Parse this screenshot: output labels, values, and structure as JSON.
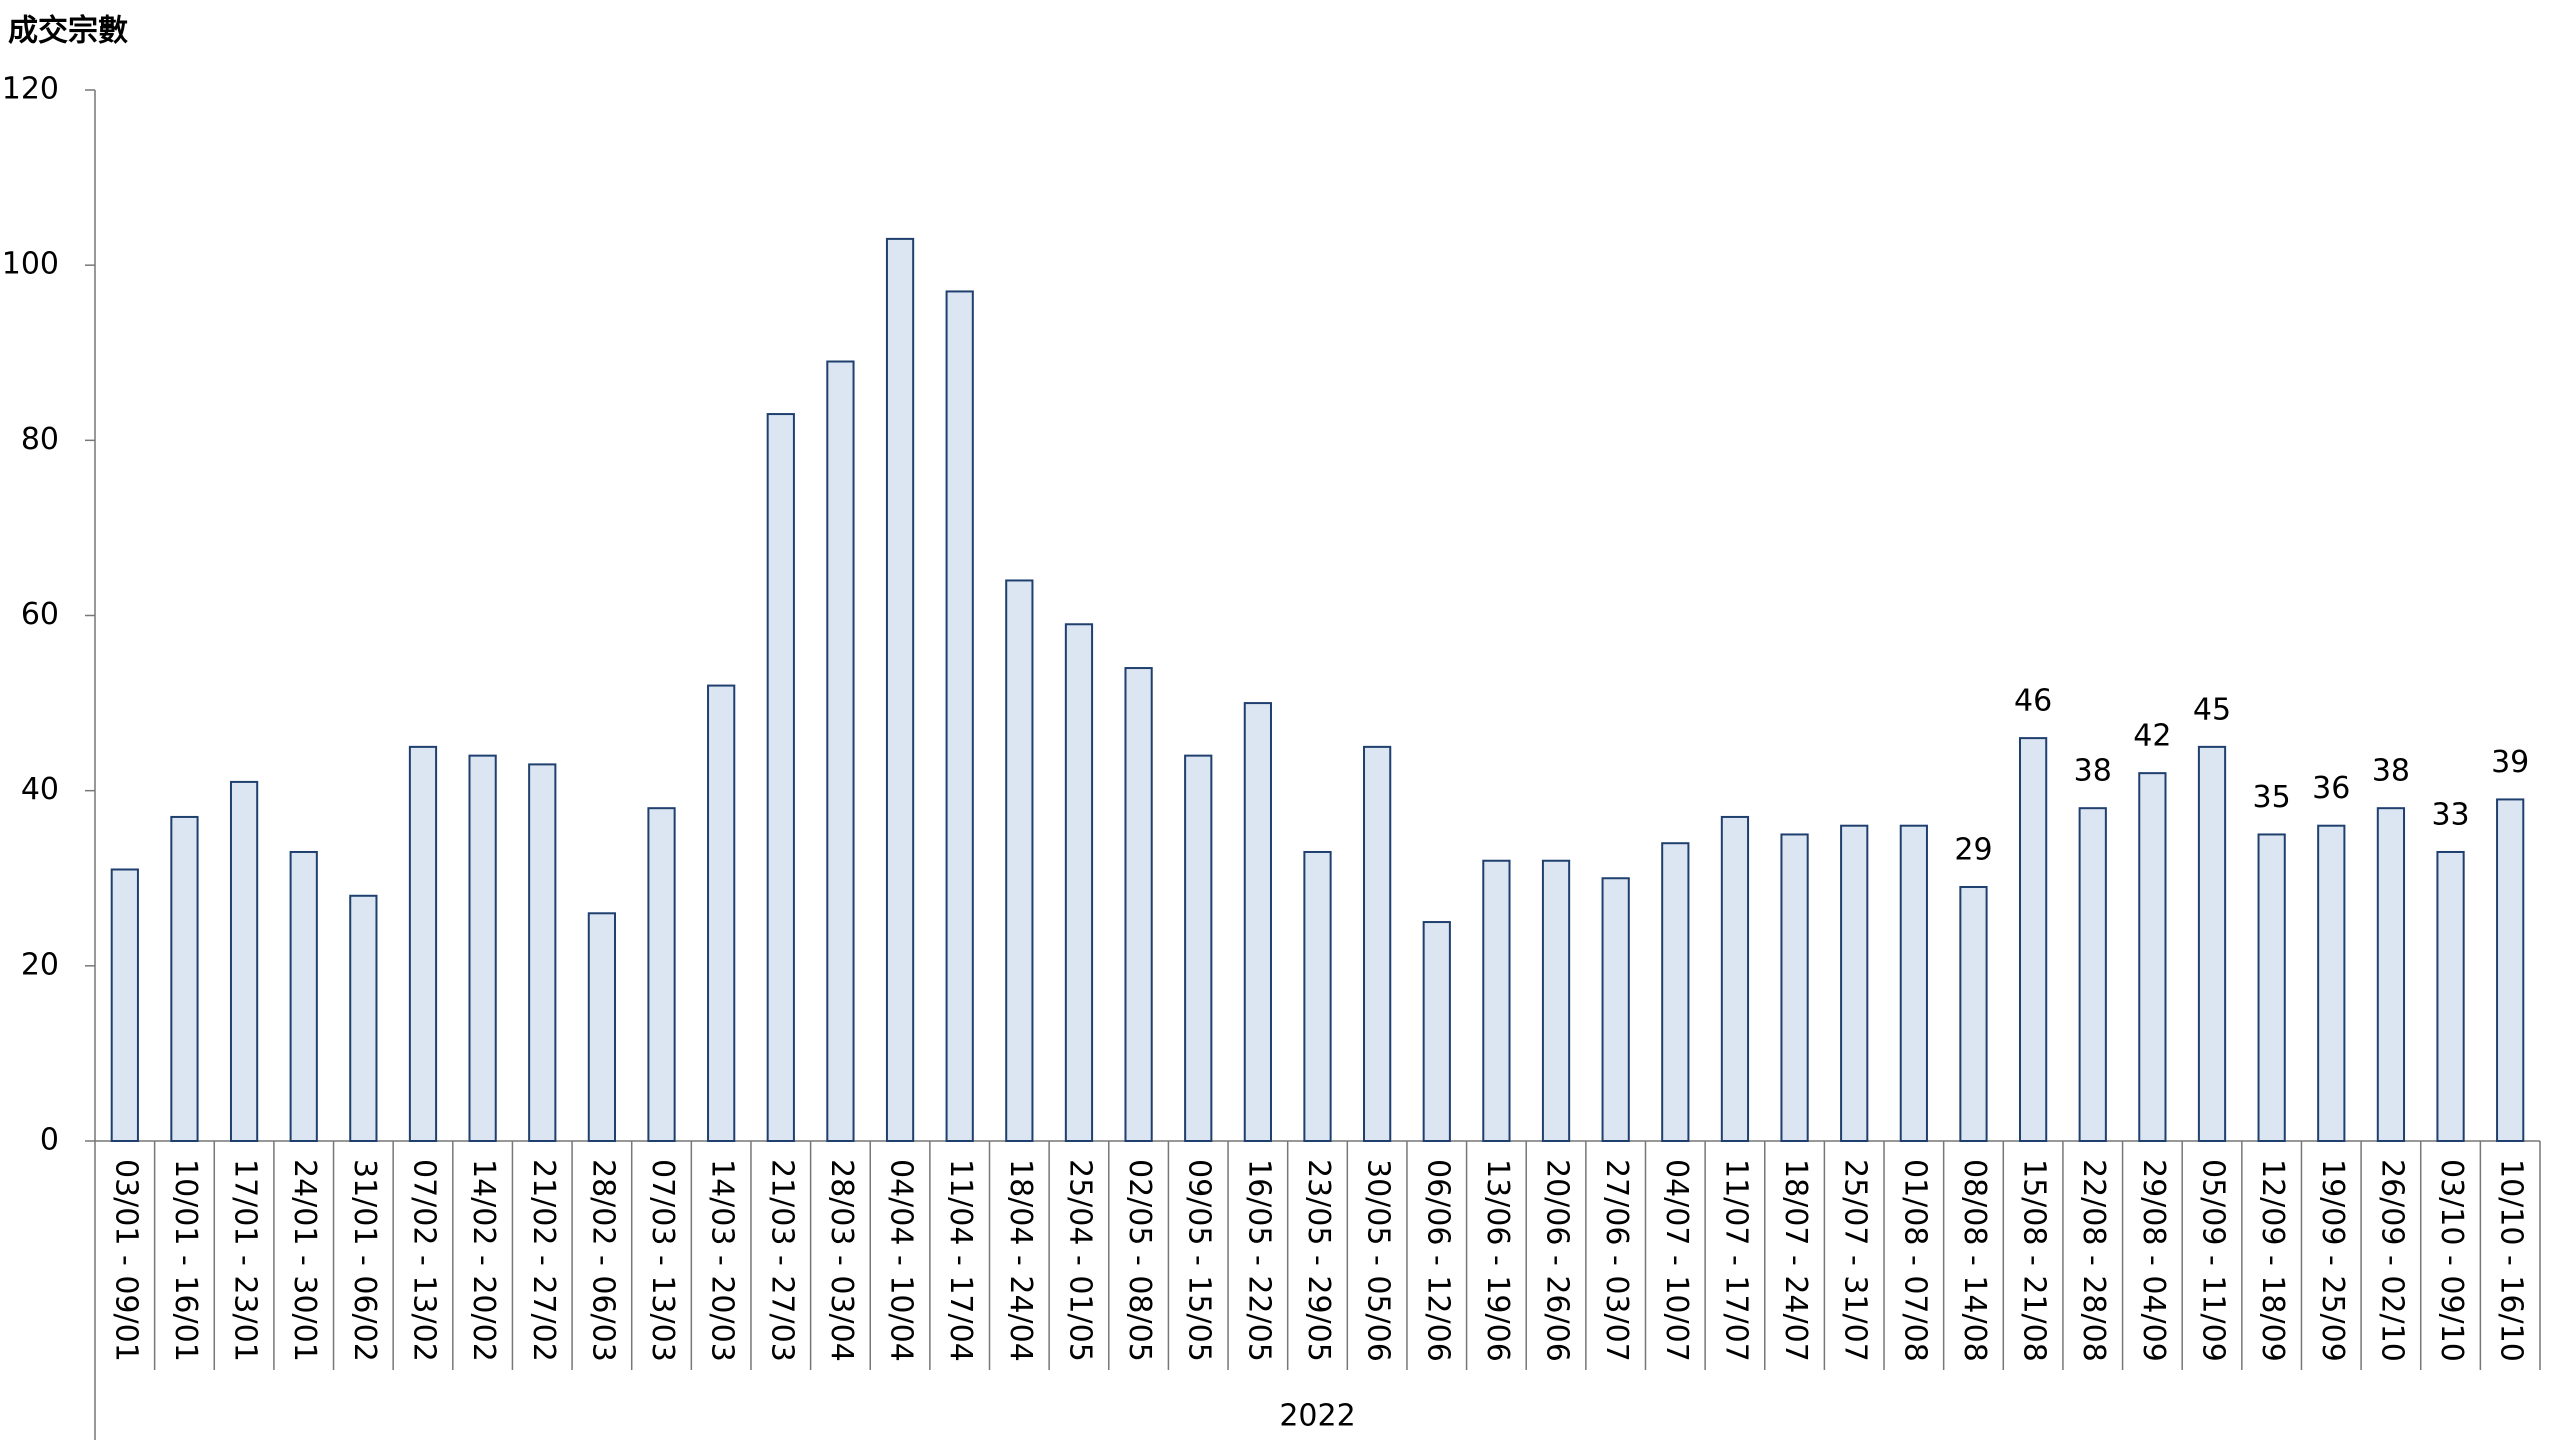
{
  "chart_data": {
    "type": "bar",
    "y_axis_label": "成交宗數",
    "x_group_label": "2022",
    "categories": [
      "03/01 - 09/01",
      "10/01 - 16/01",
      "17/01 - 23/01",
      "24/01 - 30/01",
      "31/01 - 06/02",
      "07/02 - 13/02",
      "14/02 - 20/02",
      "21/02 - 27/02",
      "28/02 - 06/03",
      "07/03 - 13/03",
      "14/03 - 20/03",
      "21/03 - 27/03",
      "28/03 - 03/04",
      "04/04 - 10/04",
      "11/04 - 17/04",
      "18/04 - 24/04",
      "25/04 - 01/05",
      "02/05 - 08/05",
      "09/05 - 15/05",
      "16/05 - 22/05",
      "23/05 - 29/05",
      "30/05 - 05/06",
      "06/06 - 12/06",
      "13/06 - 19/06",
      "20/06 - 26/06",
      "27/06 - 03/07",
      "04/07 - 10/07",
      "11/07 - 17/07",
      "18/07 - 24/07",
      "25/07 - 31/07",
      "01/08 - 07/08",
      "08/08 - 14/08",
      "15/08 - 21/08",
      "22/08 - 28/08",
      "29/08 - 04/09",
      "05/09 - 11/09",
      "12/09 - 18/09",
      "19/09 - 25/09",
      "26/09 - 02/10",
      "03/10 - 09/10",
      "10/10 - 16/10"
    ],
    "values": [
      31,
      37,
      41,
      33,
      28,
      45,
      44,
      43,
      26,
      38,
      52,
      83,
      89,
      103,
      97,
      64,
      59,
      54,
      44,
      50,
      33,
      45,
      25,
      32,
      32,
      30,
      34,
      37,
      35,
      36,
      36,
      29,
      46,
      38,
      42,
      45,
      35,
      36,
      38,
      33,
      39
    ],
    "value_labels": [
      null,
      null,
      null,
      null,
      null,
      null,
      null,
      null,
      null,
      null,
      null,
      null,
      null,
      null,
      null,
      null,
      null,
      null,
      null,
      null,
      null,
      null,
      null,
      null,
      null,
      null,
      null,
      null,
      null,
      null,
      null,
      "29",
      "46",
      "38",
      "42",
      "45",
      "35",
      "36",
      "38",
      "33",
      "39"
    ],
    "color": "#dce6f2",
    "edge_color": "#1f3f6e",
    "ylim": [
      0,
      120
    ],
    "yticks": [
      0,
      20,
      40,
      60,
      80,
      100,
      120
    ],
    "grid": false
  }
}
